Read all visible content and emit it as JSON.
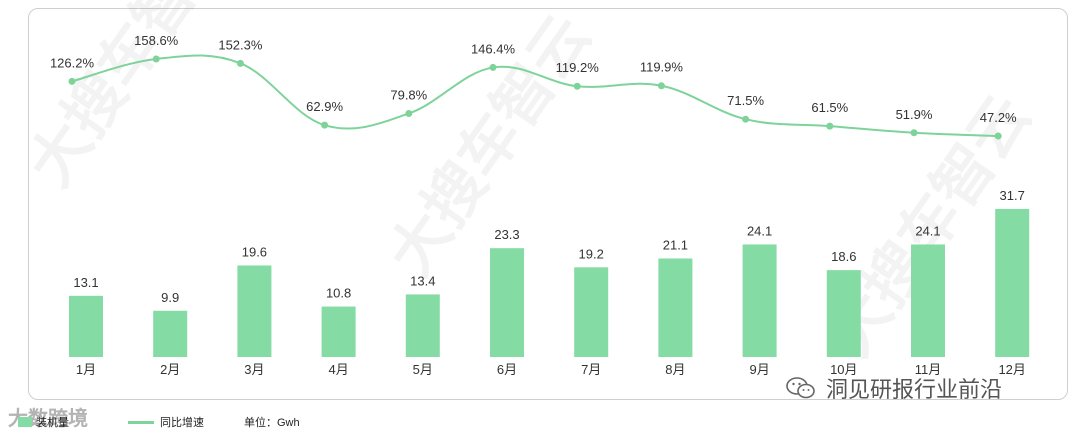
{
  "colors": {
    "bar": "#84dba4",
    "line": "#7ed39b",
    "text": "#333333"
  },
  "chart_data": {
    "type": "bar+line",
    "categories": [
      "1月",
      "2月",
      "3月",
      "4月",
      "5月",
      "6月",
      "7月",
      "8月",
      "9月",
      "10月",
      "11月",
      "12月"
    ],
    "series": [
      {
        "name": "装机量",
        "type": "bar",
        "values": [
          13.1,
          9.9,
          19.6,
          10.8,
          13.4,
          23.3,
          19.2,
          21.1,
          24.1,
          18.6,
          24.1,
          31.7
        ]
      },
      {
        "name": "同比增速",
        "type": "line",
        "values": [
          126.2,
          158.6,
          152.3,
          62.9,
          79.8,
          146.4,
          119.2,
          119.9,
          71.5,
          61.5,
          51.9,
          47.2
        ],
        "labels": [
          "126.2%",
          "158.6%",
          "152.3%",
          "62.9%",
          "79.8%",
          "146.4%",
          "119.2%",
          "119.9%",
          "71.5%",
          "61.5%",
          "51.9%",
          "47.2%"
        ]
      }
    ],
    "legend_position": "bottom-left",
    "grid": false
  },
  "legend": {
    "bar_label": "装机量",
    "line_label": "同比增速",
    "unit_label": "单位：Gwh"
  },
  "watermark": {
    "text": "大搜车智云"
  },
  "branding": {
    "left_text": "大数跨境",
    "right_text": "洞见研报行业前沿"
  }
}
